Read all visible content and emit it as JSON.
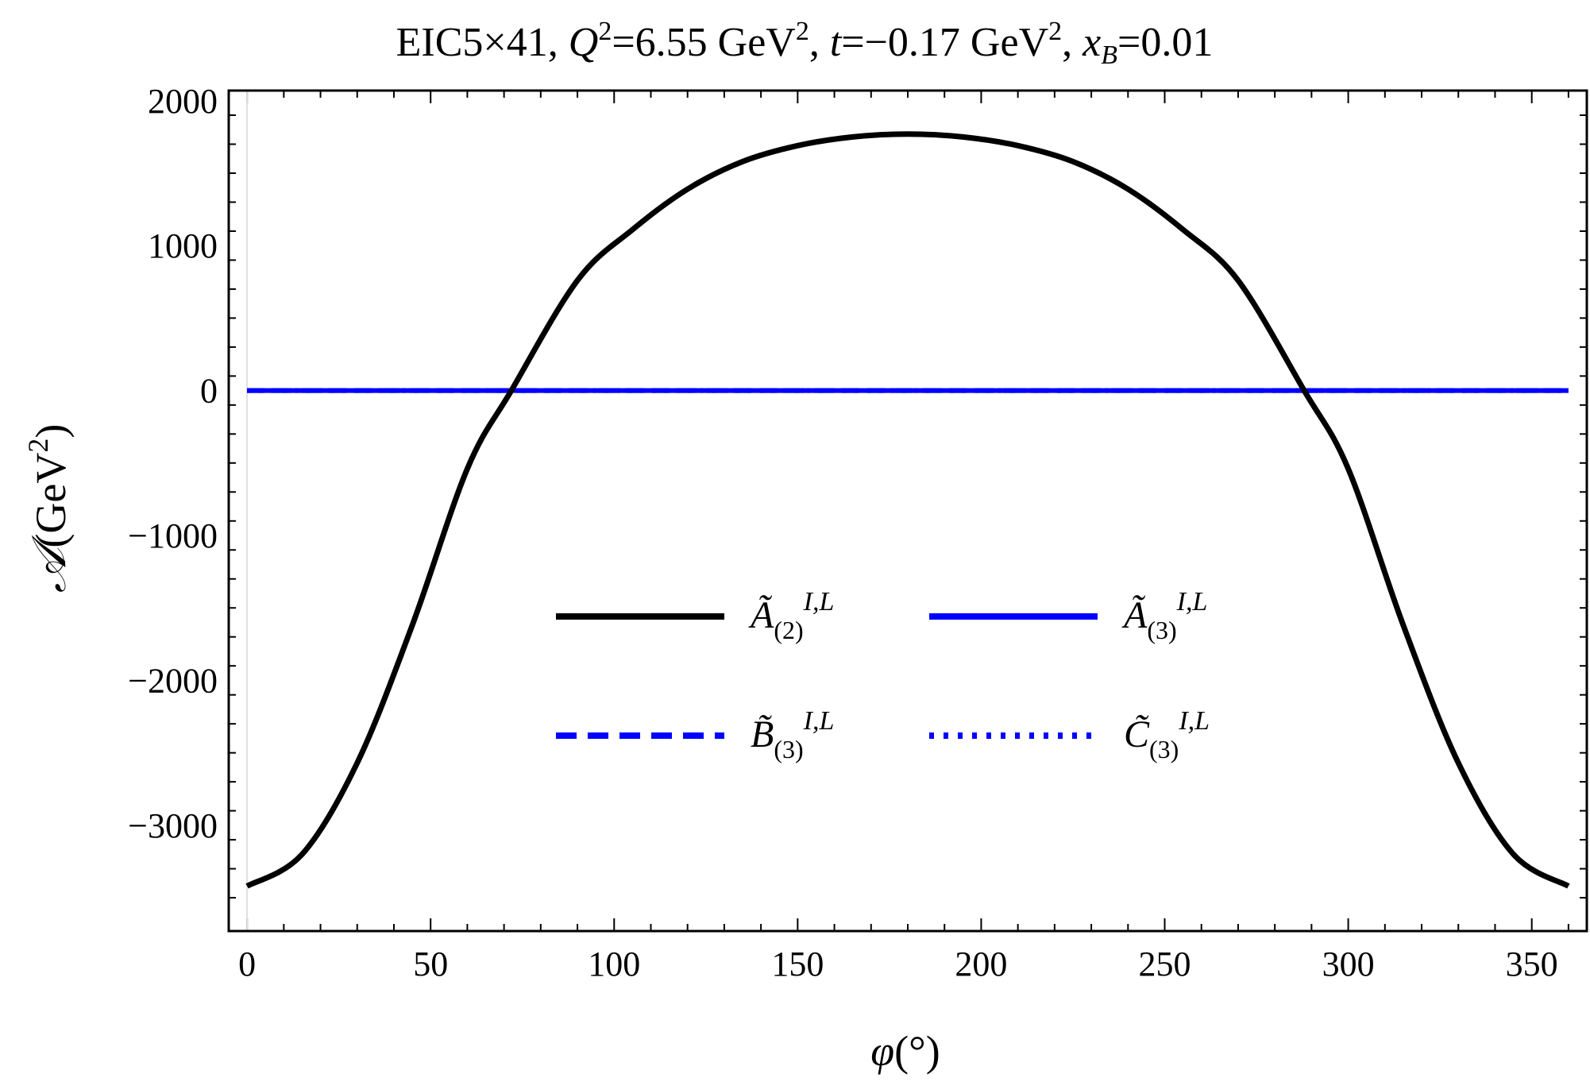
{
  "chart_data": {
    "type": "line",
    "title": "EIC5×41, Q²=6.55 GeV², t=−0.17 GeV², x_B=0.01",
    "title_parts": {
      "prefix": "EIC5×41, ",
      "q": "Q",
      "q_exp": "2",
      "q_val": "=6.55 GeV",
      "q_unit_exp": "2",
      "t_sep": ", ",
      "t": "t",
      "t_val": "=−0.17 GeV",
      "t_unit_exp": "2",
      "x_sep": ", ",
      "x": "x",
      "x_sub": "B",
      "x_val": "=0.01"
    },
    "xlabel": "φ(°)",
    "xlabel_parts": {
      "sym": "φ",
      "unit": "(°)"
    },
    "ylabel": "𝒜(GeV²)",
    "ylabel_parts": {
      "sym": "𝒜",
      "unit": "(GeV",
      "exp": "2",
      "close": ")"
    },
    "xlim": [
      -5,
      365
    ],
    "ylim": [
      -3730,
      2070
    ],
    "x_ticks": [
      0,
      50,
      100,
      150,
      200,
      250,
      300,
      350
    ],
    "x_tick_labels": [
      "0",
      "50",
      "100",
      "150",
      "200",
      "250",
      "300",
      "350"
    ],
    "y_ticks": [
      -3000,
      -2000,
      -1000,
      0,
      1000,
      2000
    ],
    "y_tick_labels": [
      "−3000",
      "−2000",
      "−1000",
      "0",
      "1000",
      "2000"
    ],
    "grid": false,
    "legend_position": "center",
    "series": [
      {
        "name": "Ã(2)^{I,L}",
        "label": {
          "base": "Ã",
          "sub": "(2)",
          "sup": "I,L"
        },
        "color": "#000000",
        "style": "solid",
        "x": [
          0,
          15,
          30,
          45,
          60,
          72,
          90,
          105,
          120,
          135,
          150,
          165,
          180,
          195,
          210,
          225,
          240,
          255,
          270,
          288,
          300,
          315,
          330,
          345,
          360
        ],
        "y": [
          -3420,
          -3200,
          -2570,
          -1620,
          -540,
          0,
          760,
          1110,
          1390,
          1580,
          1690,
          1750,
          1770,
          1750,
          1690,
          1580,
          1390,
          1110,
          760,
          0,
          -540,
          -1620,
          -2570,
          -3200,
          -3420
        ]
      },
      {
        "name": "Ã(3)^{I,L}",
        "label": {
          "base": "Ã",
          "sub": "(3)",
          "sup": "I,L"
        },
        "color": "#0000ff",
        "style": "solid",
        "x": [
          0,
          90,
          180,
          270,
          360
        ],
        "y": [
          0,
          0,
          0,
          0,
          0
        ]
      },
      {
        "name": "B̃(3)^{I,L}",
        "label": {
          "base": "B̃",
          "sub": "(3)",
          "sup": "I,L"
        },
        "color": "#0000ff",
        "style": "dashed",
        "x": [
          0,
          90,
          180,
          270,
          360
        ],
        "y": [
          0,
          0,
          0,
          0,
          0
        ]
      },
      {
        "name": "C̃(3)^{I,L}",
        "label": {
          "base": "C̃",
          "sub": "(3)",
          "sup": "I,L"
        },
        "color": "#0000ff",
        "style": "dotted",
        "x": [
          0,
          90,
          180,
          270,
          360
        ],
        "y": [
          0,
          0,
          0,
          0,
          0
        ]
      }
    ]
  }
}
